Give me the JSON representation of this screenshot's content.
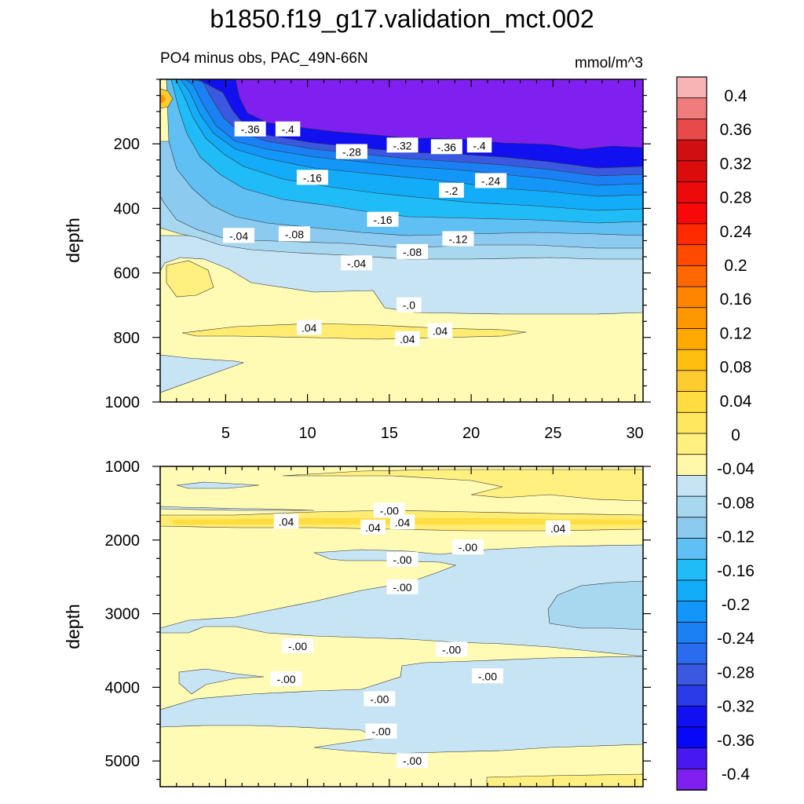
{
  "figure": {
    "title": "b1850.f19_g17.validation_mct.002",
    "subtitle_left": "PO4 minus obs, PAC_49N-66N",
    "subtitle_right": "mmol/m^3"
  },
  "chart_data": [
    {
      "type": "contour",
      "panel": "upper",
      "ylabel": "depth",
      "xlabel": "",
      "xlim": [
        1,
        30.5
      ],
      "ylim": [
        1000,
        0
      ],
      "xticks": [
        "5",
        "10",
        "15",
        "20",
        "25",
        "30"
      ],
      "yticks": [
        "200",
        "400",
        "600",
        "800",
        "1000"
      ],
      "contour_labels": [
        {
          "text": "-.36",
          "x": 6.5,
          "y": 155
        },
        {
          "text": "-.4",
          "x": 8.8,
          "y": 155
        },
        {
          "text": "-.28",
          "x": 12.7,
          "y": 225
        },
        {
          "text": "-.32",
          "x": 15.8,
          "y": 205
        },
        {
          "text": "-.36",
          "x": 18.5,
          "y": 210
        },
        {
          "text": "-.4",
          "x": 20.5,
          "y": 205
        },
        {
          "text": "-.16",
          "x": 10.3,
          "y": 305
        },
        {
          "text": "-.24",
          "x": 21.2,
          "y": 315
        },
        {
          "text": "-.2",
          "x": 18.8,
          "y": 345
        },
        {
          "text": "-.16",
          "x": 14.6,
          "y": 435
        },
        {
          "text": "-.04",
          "x": 5.8,
          "y": 485
        },
        {
          "text": "-.08",
          "x": 9.2,
          "y": 480
        },
        {
          "text": "-.12",
          "x": 19.2,
          "y": 495
        },
        {
          "text": "-.08",
          "x": 16.4,
          "y": 535
        },
        {
          "text": "-.04",
          "x": 13.0,
          "y": 570
        },
        {
          "text": "-.0",
          "x": 16.2,
          "y": 700
        },
        {
          "text": ".04",
          "x": 10.1,
          "y": 770
        },
        {
          "text": ".04",
          "x": 16.1,
          "y": 805
        },
        {
          "text": ".04",
          "x": 18.1,
          "y": 780
        }
      ]
    },
    {
      "type": "contour",
      "panel": "lower",
      "ylabel": "depth",
      "xlabel": "",
      "xlim": [
        1,
        30.5
      ],
      "ylim": [
        5350,
        1000
      ],
      "yticks": [
        "1000",
        "2000",
        "3000",
        "4000",
        "5000"
      ],
      "contour_labels": [
        {
          "text": "-.00",
          "x": 15.0,
          "y": 1600
        },
        {
          "text": ".04",
          "x": 8.7,
          "y": 1750
        },
        {
          "text": ".04",
          "x": 14.0,
          "y": 1830
        },
        {
          "text": ".04",
          "x": 15.8,
          "y": 1760
        },
        {
          "text": ".04",
          "x": 25.3,
          "y": 1840
        },
        {
          "text": "-.00",
          "x": 19.8,
          "y": 2100
        },
        {
          "text": "-.00",
          "x": 15.8,
          "y": 2270
        },
        {
          "text": "-.00",
          "x": 15.8,
          "y": 2640
        },
        {
          "text": "-.00",
          "x": 9.4,
          "y": 3440
        },
        {
          "text": "-.00",
          "x": 18.8,
          "y": 3490
        },
        {
          "text": "-.00",
          "x": 8.7,
          "y": 3890
        },
        {
          "text": "-.00",
          "x": 21.0,
          "y": 3850
        },
        {
          "text": "-.00",
          "x": 14.4,
          "y": 4160
        },
        {
          "text": "-.00",
          "x": 14.5,
          "y": 4600
        },
        {
          "text": "-.00",
          "x": 16.4,
          "y": 5000
        }
      ]
    }
  ],
  "colorbar": {
    "levels": [
      0.4,
      0.36,
      0.32,
      0.28,
      0.24,
      0.2,
      0.16,
      0.12,
      0.08,
      0.04,
      0,
      -0.04,
      -0.08,
      -0.12,
      -0.16,
      -0.2,
      -0.24,
      -0.28,
      -0.32,
      -0.36,
      -0.4
    ],
    "labels": [
      "0.4",
      "0.36",
      "0.32",
      "0.28",
      "0.24",
      "0.2",
      "0.16",
      "0.12",
      "0.08",
      "0.04",
      "0",
      "-0.04",
      "-0.08",
      "-0.12",
      "-0.16",
      "-0.2",
      "-0.24",
      "-0.28",
      "-0.32",
      "-0.36",
      "-0.4"
    ],
    "colors_top_to_bottom": [
      "#f8b4b4",
      "#f07c7c",
      "#e84a4a",
      "#d01010",
      "#dc0c0c",
      "#ec0a0a",
      "#f80808",
      "#ff2a00",
      "#ff4a00",
      "#ff6800",
      "#ff8400",
      "#ff9800",
      "#ffaa00",
      "#ffbe10",
      "#ffcc30",
      "#ffdc40",
      "#ffe860",
      "#fff080",
      "#fff8a8",
      "#c6e4f4",
      "#a8d8f0",
      "#8ccaf0",
      "#60c0f4",
      "#20bcf8",
      "#12acf8",
      "#1296f8",
      "#1a80f4",
      "#2a6cf0",
      "#3a58e0",
      "#2a3ce8",
      "#1010f0",
      "#0808f8",
      "#4818f0",
      "#8020f0"
    ],
    "color_neg_fill_steps": {
      "zero_to_m04": "#c6e4f4",
      "m36_to_m4": "#8020f0",
      "pos_0_04": "#fff8b0",
      "pos_04_08": "#ffec70"
    }
  }
}
